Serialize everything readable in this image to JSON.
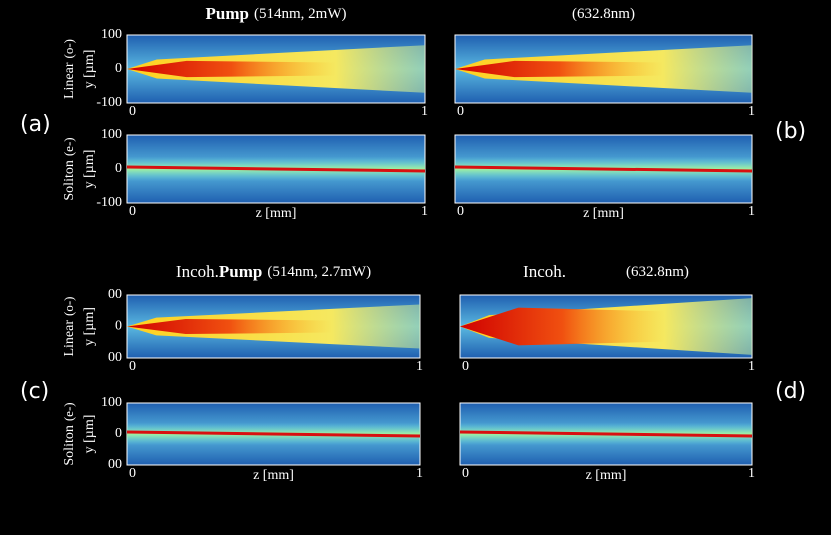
{
  "groups": [
    {
      "panel_labels": [
        "(a)",
        "(b)"
      ],
      "left_title_bold": "Pump",
      "left_title_rest": "(514nm, 2mW)",
      "right_title": "(632.8nm)",
      "rows": [
        {
          "label": "Linear",
          "polarization": "(o-)",
          "y_axis": "y [µm]",
          "y_ticks": [
            "100",
            "0",
            "-100"
          ]
        },
        {
          "label": "Soliton",
          "polarization": "(e-)",
          "y_axis": "y [µm]",
          "y_ticks": [
            "100",
            "0",
            "-100"
          ]
        }
      ],
      "x_ticks": [
        "0",
        "1"
      ],
      "x_axis": "z [mm]"
    },
    {
      "panel_labels": [
        "(c)",
        "(d)"
      ],
      "left_title_prefix": "Incoh.",
      "left_title_bold": "Pump",
      "left_title_rest": "(514nm, 2.7mW)",
      "right_title_prefix": "Incoh.",
      "right_title": "(632.8nm)",
      "rows": [
        {
          "label": "Linear",
          "polarization": "(o-)",
          "y_axis": "y [µm]",
          "y_ticks": [
            "00",
            "0",
            "00"
          ]
        },
        {
          "label": "Soliton",
          "polarization": "(e-)",
          "y_axis": "y [µm]",
          "y_ticks": [
            "100",
            "0",
            "00"
          ]
        }
      ],
      "x_ticks": [
        "0",
        "1"
      ],
      "x_axis": "z [mm]"
    }
  ]
}
